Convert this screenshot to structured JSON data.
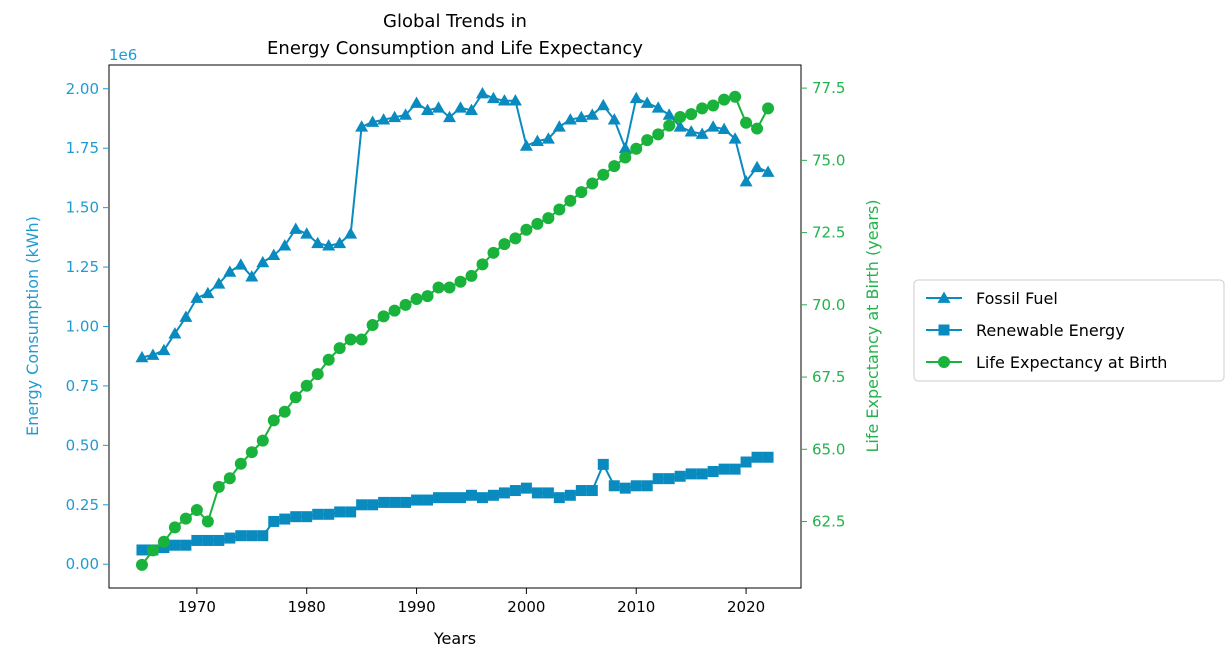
{
  "chart_data": {
    "type": "line",
    "title": "Global Trends in\nEnergy Consumption and Life Expectancy",
    "xlabel": "Years",
    "ylabel_left": "Energy Consumption (kWh)",
    "ylabel_right": "Life Expectancy at Birth (years)",
    "left_axis_offset_label": "1e6",
    "xlim": [
      1962,
      2025
    ],
    "ylim_left": [
      -0.1,
      2.1
    ],
    "ylim_right": [
      60.2,
      78.3
    ],
    "x_ticks": [
      1970,
      1980,
      1990,
      2000,
      2010,
      2020
    ],
    "y_ticks_left": [
      "0.00",
      "0.25",
      "0.50",
      "0.75",
      "1.00",
      "1.25",
      "1.50",
      "1.75",
      "2.00"
    ],
    "y_ticks_right": [
      "62.5",
      "65.0",
      "67.5",
      "70.0",
      "72.5",
      "75.0",
      "77.5"
    ],
    "colors": {
      "left_axis": "#1f9bd1",
      "right_axis": "#22b24c"
    },
    "legend_position": "outside right",
    "x": [
      1965,
      1966,
      1967,
      1968,
      1969,
      1970,
      1971,
      1972,
      1973,
      1974,
      1975,
      1976,
      1977,
      1978,
      1979,
      1980,
      1981,
      1982,
      1983,
      1984,
      1985,
      1986,
      1987,
      1988,
      1989,
      1990,
      1991,
      1992,
      1993,
      1994,
      1995,
      1996,
      1997,
      1998,
      1999,
      2000,
      2001,
      2002,
      2003,
      2004,
      2005,
      2006,
      2007,
      2008,
      2009,
      2010,
      2011,
      2012,
      2013,
      2014,
      2015,
      2016,
      2017,
      2018,
      2019,
      2020,
      2021,
      2022
    ],
    "series": [
      {
        "name": "Fossil Fuel",
        "axis": "left",
        "marker": "triangle",
        "color": "#0a8bc0",
        "values": [
          0.87,
          0.88,
          0.9,
          0.97,
          1.04,
          1.12,
          1.14,
          1.18,
          1.23,
          1.26,
          1.21,
          1.27,
          1.3,
          1.34,
          1.41,
          1.39,
          1.35,
          1.34,
          1.35,
          1.39,
          1.84,
          1.86,
          1.87,
          1.88,
          1.89,
          1.94,
          1.91,
          1.92,
          1.88,
          1.92,
          1.91,
          1.98,
          1.96,
          1.95,
          1.95,
          1.76,
          1.78,
          1.79,
          1.84,
          1.87,
          1.88,
          1.89,
          1.93,
          1.87,
          1.75,
          1.96,
          1.94,
          1.92,
          1.89,
          1.84,
          1.82,
          1.81,
          1.84,
          1.83,
          1.79,
          1.61,
          1.67,
          1.65
        ]
      },
      {
        "name": "Renewable Energy",
        "axis": "left",
        "marker": "square",
        "color": "#0a8bc0",
        "values": [
          0.06,
          0.06,
          0.07,
          0.08,
          0.08,
          0.1,
          0.1,
          0.1,
          0.11,
          0.12,
          0.12,
          0.12,
          0.18,
          0.19,
          0.2,
          0.2,
          0.21,
          0.21,
          0.22,
          0.22,
          0.25,
          0.25,
          0.26,
          0.26,
          0.26,
          0.27,
          0.27,
          0.28,
          0.28,
          0.28,
          0.29,
          0.28,
          0.29,
          0.3,
          0.31,
          0.32,
          0.3,
          0.3,
          0.28,
          0.29,
          0.31,
          0.31,
          0.42,
          0.33,
          0.32,
          0.33,
          0.33,
          0.36,
          0.36,
          0.37,
          0.38,
          0.38,
          0.39,
          0.4,
          0.4,
          0.43,
          0.45,
          0.45
        ]
      },
      {
        "name": "Life Expectancy at Birth",
        "axis": "right",
        "marker": "circle",
        "color": "#19b23b",
        "values": [
          61.0,
          61.5,
          61.8,
          62.3,
          62.6,
          62.9,
          62.5,
          63.7,
          64.0,
          64.5,
          64.9,
          65.3,
          66.0,
          66.3,
          66.8,
          67.2,
          67.6,
          68.1,
          68.5,
          68.8,
          68.8,
          69.3,
          69.6,
          69.8,
          70.0,
          70.2,
          70.3,
          70.6,
          70.6,
          70.8,
          71.0,
          71.4,
          71.8,
          72.1,
          72.3,
          72.6,
          72.8,
          73.0,
          73.3,
          73.6,
          73.9,
          74.2,
          74.5,
          74.8,
          75.1,
          75.4,
          75.7,
          75.9,
          76.2,
          76.5,
          76.6,
          76.8,
          76.9,
          77.1,
          77.2,
          76.3,
          76.1,
          76.8
        ]
      }
    ]
  }
}
